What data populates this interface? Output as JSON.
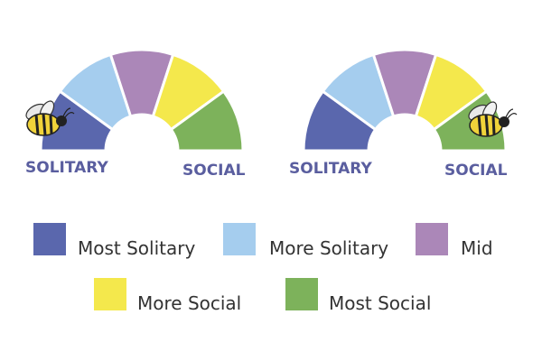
{
  "gauges": [
    {
      "left_label": "SOLITARY",
      "right_label": "SOCIAL"
    },
    {
      "left_label": "SOLITARY",
      "right_label": "SOCIAL"
    }
  ],
  "legend": [
    {
      "label": "Most Solitary",
      "color": "#5a67ad"
    },
    {
      "label": "More Solitary",
      "color": "#a5cdee"
    },
    {
      "label": "Mid",
      "color": "#ab87b8"
    },
    {
      "label": "More Social",
      "color": "#f4e84c"
    },
    {
      "label": "Most Social",
      "color": "#7db25b"
    }
  ]
}
